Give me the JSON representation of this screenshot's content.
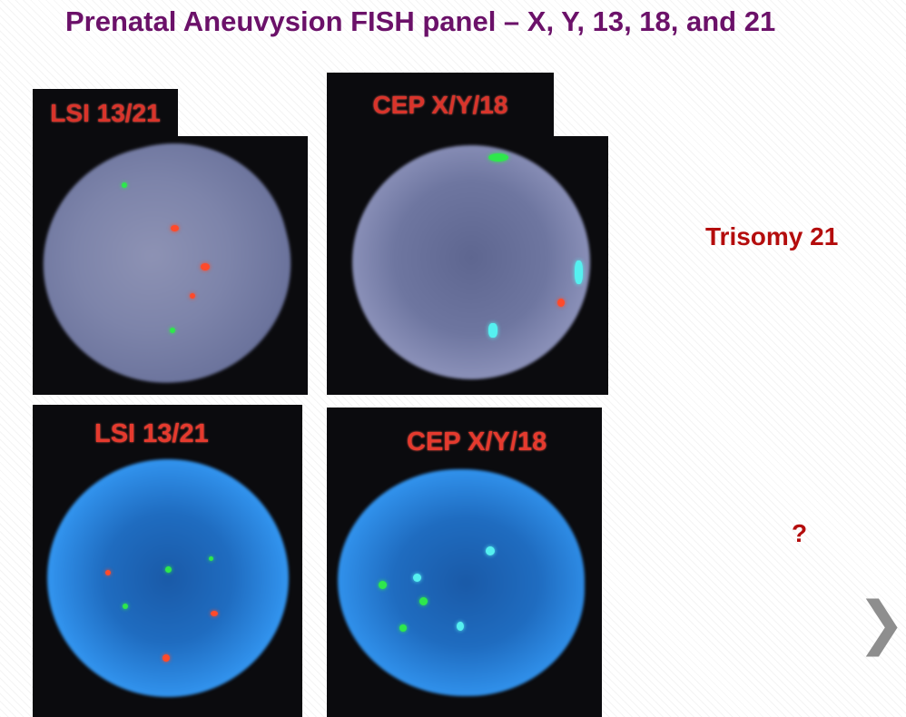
{
  "slide": {
    "title": "Prenatal Aneuvysion FISH panel – X, Y, 13, 18, and 21",
    "annotations": {
      "top": "Trisomy 21",
      "bottom": "?"
    },
    "next_icon": "chevron-right-icon",
    "next_glyph": "❯"
  },
  "images": {
    "top_left_label": "LSI 13/21",
    "top_right_label": "CEP X/Y/18",
    "bottom_left_label": "LSI 13/21",
    "bottom_right_label": "CEP X/Y/18"
  },
  "colors": {
    "title": "#6b1169",
    "annotation": "#b40d0d",
    "probe_label": "#e53a2e",
    "signal_green": "#2ee84c",
    "signal_red": "#ff4a2a",
    "signal_aqua": "#55f0f0"
  }
}
